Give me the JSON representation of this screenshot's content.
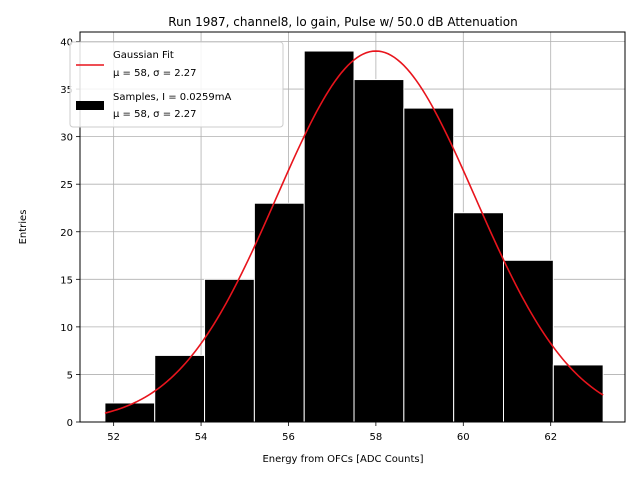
{
  "chart_data": {
    "type": "bar",
    "title": "Run 1987, channel8, lo gain, Pulse w/ 50.0 dB Attenuation",
    "xlabel": "Energy from OFCs [ADC Counts]",
    "ylabel": "Entries",
    "xlim": [
      51.23,
      63.7
    ],
    "ylim": [
      0,
      41
    ],
    "xticks": [
      52,
      54,
      56,
      58,
      60,
      62
    ],
    "yticks": [
      0,
      5,
      10,
      15,
      20,
      25,
      30,
      35,
      40
    ],
    "grid": true,
    "legend_position": "top-left",
    "histogram": {
      "name": "Samples, I = 0.0259mA",
      "name_line2": "μ = 58, σ = 2.27",
      "color": "#000000",
      "edge_color": "#ffffff",
      "bins": [
        {
          "x0": 51.8,
          "x1": 52.94,
          "count": 2
        },
        {
          "x0": 52.94,
          "x1": 54.08,
          "count": 7
        },
        {
          "x0": 54.08,
          "x1": 55.22,
          "count": 15
        },
        {
          "x0": 55.22,
          "x1": 56.36,
          "count": 23
        },
        {
          "x0": 56.36,
          "x1": 57.5,
          "count": 39
        },
        {
          "x0": 57.5,
          "x1": 58.64,
          "count": 36
        },
        {
          "x0": 58.64,
          "x1": 59.78,
          "count": 33
        },
        {
          "x0": 59.78,
          "x1": 60.92,
          "count": 22
        },
        {
          "x0": 60.92,
          "x1": 62.06,
          "count": 17
        },
        {
          "x0": 62.06,
          "x1": 63.2,
          "count": 6
        }
      ]
    },
    "fit": {
      "name": "Gaussian Fit",
      "name_line2": "μ = 58, σ = 2.27",
      "color": "#e8141c",
      "mu": 58,
      "sigma": 2.27,
      "amplitude": 39,
      "x_range": [
        51.8,
        63.2
      ]
    }
  }
}
